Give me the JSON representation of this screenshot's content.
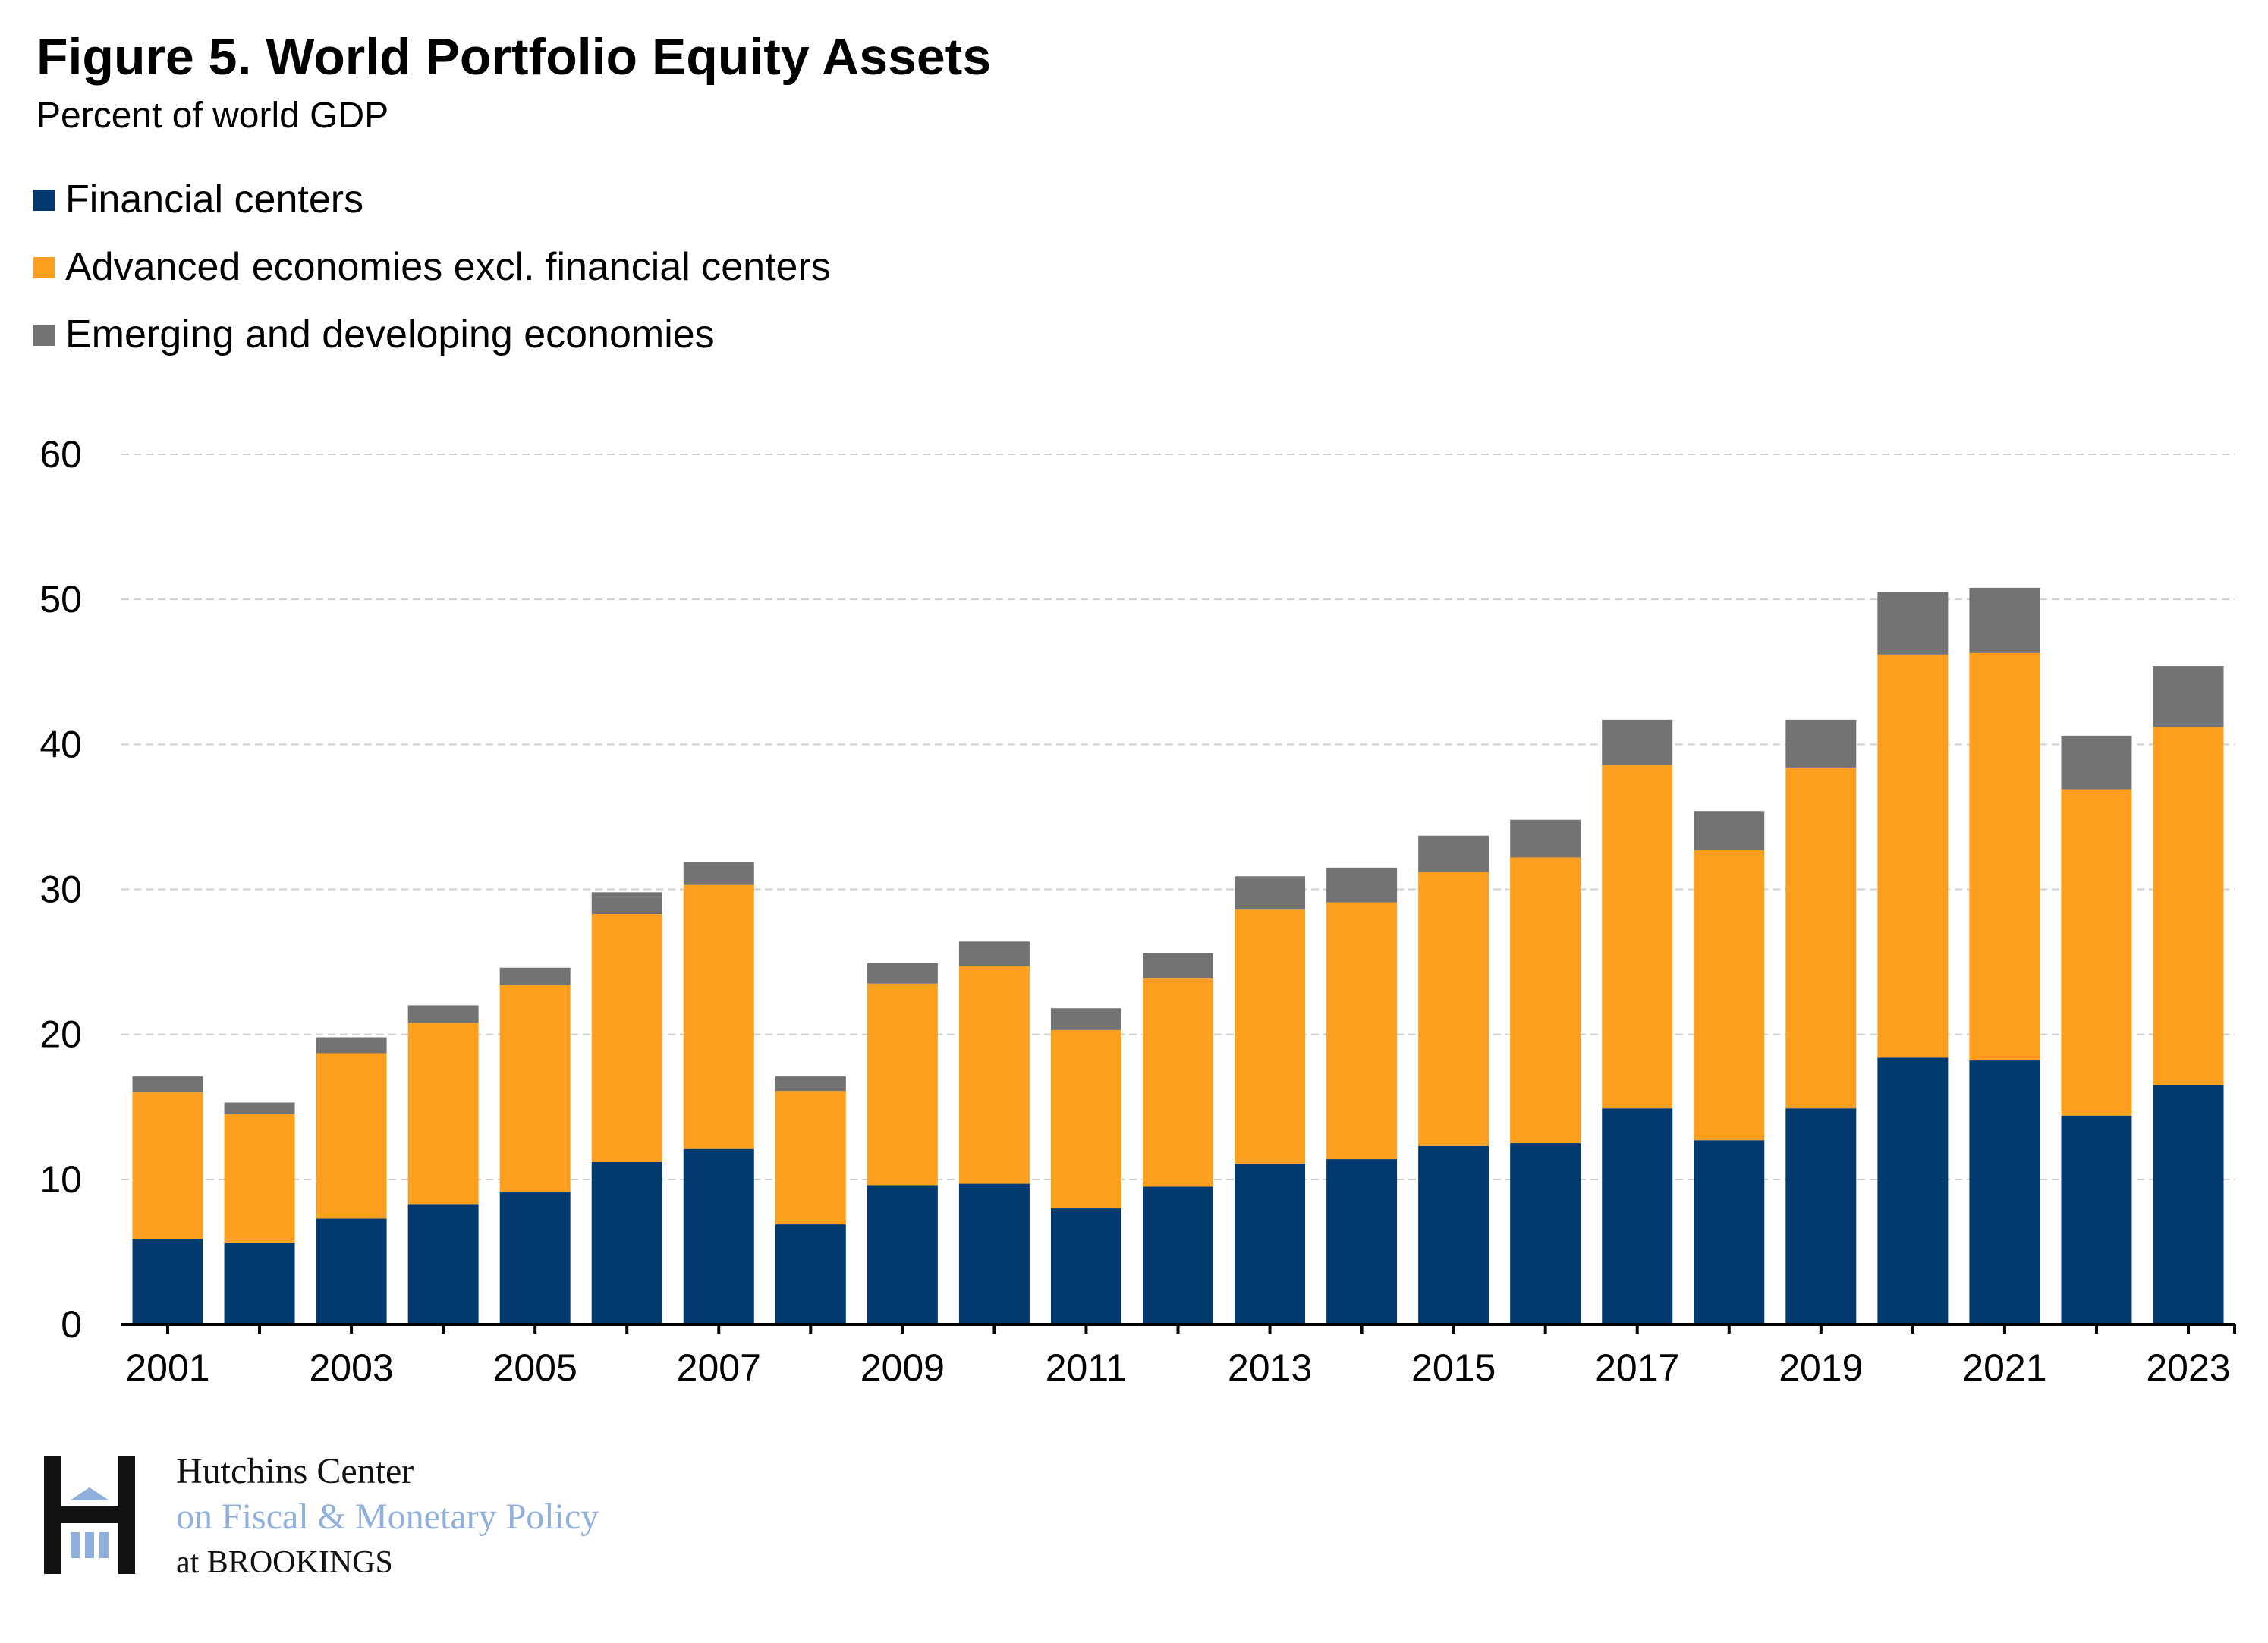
{
  "chart_data": {
    "type": "bar",
    "stacked": true,
    "title": "Figure 5. World Portfolio Equity Assets",
    "subtitle": "Percent of world GDP",
    "xlabel": "",
    "ylabel": "Percent of world GDP",
    "ylim": [
      0,
      60
    ],
    "yticks": [
      0,
      10,
      20,
      30,
      40,
      50,
      60
    ],
    "grid": true,
    "legend_position": "top-left",
    "categories": [
      "2001",
      "2002",
      "2003",
      "2004",
      "2005",
      "2006",
      "2007",
      "2008",
      "2009",
      "2010",
      "2011",
      "2012",
      "2013",
      "2014",
      "2015",
      "2016",
      "2017",
      "2018",
      "2019",
      "2020",
      "2021",
      "2022",
      "2023"
    ],
    "xtick_labels": [
      "2001",
      "2003",
      "2005",
      "2007",
      "2009",
      "2011",
      "2013",
      "2015",
      "2017",
      "2019",
      "2021",
      "2023"
    ],
    "series": [
      {
        "name": "Financial centers",
        "color": "#023a70",
        "values": [
          5.9,
          5.6,
          7.3,
          8.3,
          9.1,
          11.2,
          12.1,
          6.9,
          9.6,
          9.7,
          8.0,
          9.5,
          11.1,
          11.4,
          12.3,
          12.5,
          14.9,
          12.7,
          14.9,
          18.4,
          18.2,
          14.4,
          16.5
        ]
      },
      {
        "name": "Advanced economies excl. financial centers",
        "color": "#fd9f1e",
        "values": [
          10.1,
          8.9,
          11.4,
          12.5,
          14.3,
          17.1,
          18.2,
          9.2,
          13.9,
          15.0,
          12.3,
          14.4,
          17.5,
          17.7,
          18.9,
          19.7,
          23.7,
          20.0,
          23.5,
          27.8,
          28.1,
          22.5,
          24.7
        ]
      },
      {
        "name": "Emerging and developing economies",
        "color": "#737373",
        "values": [
          1.1,
          0.8,
          1.1,
          1.2,
          1.2,
          1.5,
          1.6,
          1.0,
          1.4,
          1.7,
          1.5,
          1.7,
          2.3,
          2.4,
          2.5,
          2.6,
          3.1,
          2.7,
          3.3,
          4.3,
          4.5,
          3.7,
          4.2
        ]
      }
    ]
  },
  "logo": {
    "line1": "Hutchins Center",
    "line2": "on Fiscal & Monetary Policy",
    "line3": "at BROOKINGS"
  }
}
